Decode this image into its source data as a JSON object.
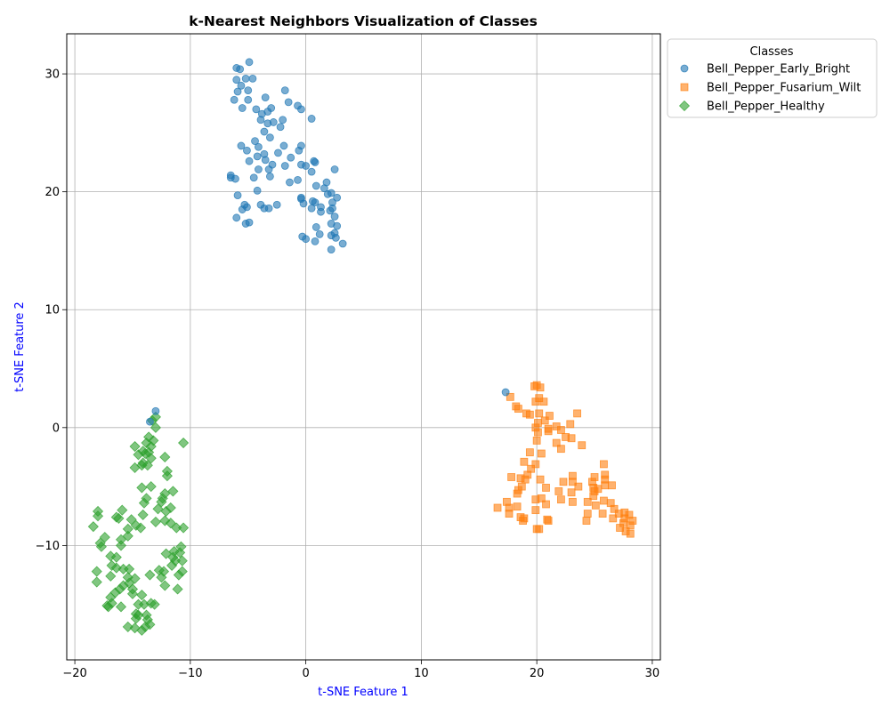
{
  "chart_data": {
    "type": "scatter",
    "title": "k-Nearest Neighbors Visualization of Classes",
    "xlabel": "t-SNE Feature 1",
    "ylabel": "t-SNE Feature 2",
    "xlim": [
      -20.7,
      30.7
    ],
    "ylim": [
      -19.7,
      33.4
    ],
    "xticks": [
      -20,
      -10,
      0,
      10,
      20,
      30
    ],
    "yticks": [
      -10,
      0,
      10,
      20,
      30
    ],
    "grid": true,
    "legend": {
      "title": "Classes",
      "placement": "outside-top-right"
    },
    "series": [
      {
        "name": "Bell_Pepper_Early_Bright",
        "marker": "circle",
        "color": "#1f77b4",
        "points": [
          [
            -6,
            30.5
          ],
          [
            -5.7,
            30.4
          ],
          [
            -4.9,
            31
          ],
          [
            -5.2,
            29.6
          ],
          [
            -6,
            29.5
          ],
          [
            -5.6,
            29
          ],
          [
            -4.6,
            29.6
          ],
          [
            -5.9,
            28.5
          ],
          [
            -5,
            28.6
          ],
          [
            -6.2,
            27.8
          ],
          [
            -5,
            27.8
          ],
          [
            -5.5,
            27.1
          ],
          [
            -4.3,
            27
          ],
          [
            -3.5,
            28
          ],
          [
            -1.8,
            28.6
          ],
          [
            -1.5,
            27.6
          ],
          [
            -0.7,
            27.3
          ],
          [
            -3,
            27.1
          ],
          [
            -3.8,
            26.6
          ],
          [
            -3.3,
            26.8
          ],
          [
            -0.4,
            27
          ],
          [
            0.5,
            26.2
          ],
          [
            -2,
            26.1
          ],
          [
            -2.8,
            25.9
          ],
          [
            -3.3,
            25.8
          ],
          [
            -3.9,
            26.1
          ],
          [
            -2.2,
            25.5
          ],
          [
            -3.6,
            25.1
          ],
          [
            -3.1,
            24.6
          ],
          [
            -4.4,
            24.3
          ],
          [
            -4.1,
            23.8
          ],
          [
            -5.6,
            23.9
          ],
          [
            -5.1,
            23.5
          ],
          [
            -1.9,
            23.9
          ],
          [
            -0.6,
            23.5
          ],
          [
            -0.4,
            23.9
          ],
          [
            -1.3,
            22.9
          ],
          [
            -2.4,
            23.3
          ],
          [
            -3.6,
            23.2
          ],
          [
            -4.2,
            23
          ],
          [
            -3.5,
            22.7
          ],
          [
            -2.9,
            22.3
          ],
          [
            -4.9,
            22.6
          ],
          [
            -4.1,
            21.9
          ],
          [
            -3.2,
            21.9
          ],
          [
            -1.8,
            22.2
          ],
          [
            -0.4,
            22.3
          ],
          [
            0,
            22.2
          ],
          [
            0.7,
            22.6
          ],
          [
            0.8,
            22.5
          ],
          [
            2.5,
            21.9
          ],
          [
            -3.1,
            21.3
          ],
          [
            -4.5,
            21.2
          ],
          [
            -6.5,
            21.4
          ],
          [
            -6.1,
            21.1
          ],
          [
            -6.5,
            21.2
          ],
          [
            -1.4,
            20.8
          ],
          [
            -0.7,
            21
          ],
          [
            0.5,
            21.7
          ],
          [
            0.9,
            20.5
          ],
          [
            1.6,
            20.3
          ],
          [
            1.8,
            20.8
          ],
          [
            1.9,
            19.8
          ],
          [
            2.2,
            19.9
          ],
          [
            2.7,
            19.5
          ],
          [
            -0.4,
            19.4
          ],
          [
            -0.4,
            19.5
          ],
          [
            0.6,
            19.2
          ],
          [
            -0.2,
            19
          ],
          [
            0.8,
            19.1
          ],
          [
            2.3,
            19.1
          ],
          [
            1.3,
            18.7
          ],
          [
            1.3,
            18.3
          ],
          [
            0.5,
            18.6
          ],
          [
            2.1,
            18.4
          ],
          [
            2.3,
            18.6
          ],
          [
            2.5,
            17.9
          ],
          [
            2.2,
            17.3
          ],
          [
            2.7,
            17.1
          ],
          [
            -4.2,
            20.1
          ],
          [
            -5.9,
            19.7
          ],
          [
            -2.5,
            18.9
          ],
          [
            -3.9,
            18.9
          ],
          [
            -3.6,
            18.6
          ],
          [
            -3.2,
            18.6
          ],
          [
            -5.3,
            18.9
          ],
          [
            -5.1,
            18.7
          ],
          [
            -5.5,
            18.5
          ],
          [
            -6,
            17.8
          ],
          [
            -5.2,
            17.3
          ],
          [
            -4.9,
            17.4
          ],
          [
            0.9,
            17
          ],
          [
            1.2,
            16.4
          ],
          [
            -0.3,
            16.2
          ],
          [
            0,
            16
          ],
          [
            0.8,
            15.8
          ],
          [
            2.2,
            16.3
          ],
          [
            2.5,
            16.5
          ],
          [
            2.6,
            16.1
          ],
          [
            2.2,
            15.1
          ],
          [
            3.2,
            15.6
          ]
        ]
      },
      {
        "name": "Bell_Pepper_Fusarium_Wilt",
        "marker": "square",
        "color": "#ff7f0e",
        "points": [
          [
            20,
            3.6
          ],
          [
            19.8,
            3.5
          ],
          [
            20.3,
            3.4
          ],
          [
            17.7,
            2.6
          ],
          [
            20.2,
            2.5
          ],
          [
            20.6,
            2.2
          ],
          [
            19.9,
            2.2
          ],
          [
            18.2,
            1.8
          ],
          [
            18.4,
            1.6
          ],
          [
            19.1,
            1.2
          ],
          [
            19.4,
            1.1
          ],
          [
            20.2,
            1.2
          ],
          [
            21.1,
            1
          ],
          [
            20.7,
            0.6
          ],
          [
            23.5,
            1.2
          ],
          [
            20.1,
            0.4
          ],
          [
            19.9,
            0
          ],
          [
            21,
            -0.1
          ],
          [
            21.7,
            0.1
          ],
          [
            22.9,
            0.3
          ],
          [
            20.1,
            -0.4
          ],
          [
            21,
            -0.3
          ],
          [
            22.1,
            -0.2
          ],
          [
            22.5,
            -0.8
          ],
          [
            20,
            -1.1
          ],
          [
            21.7,
            -1.3
          ],
          [
            23,
            -0.9
          ],
          [
            22.1,
            -1.8
          ],
          [
            23.9,
            -1.5
          ],
          [
            19.4,
            -2.1
          ],
          [
            20.4,
            -2.2
          ],
          [
            18.9,
            -2.9
          ],
          [
            19.9,
            -3.1
          ],
          [
            19.5,
            -3.5
          ],
          [
            25.8,
            -3.1
          ],
          [
            19.2,
            -4
          ],
          [
            18.6,
            -4.3
          ],
          [
            17.8,
            -4.2
          ],
          [
            19,
            -4.4
          ],
          [
            20.3,
            -4.4
          ],
          [
            23.1,
            -4.1
          ],
          [
            23.1,
            -4.6
          ],
          [
            25,
            -4.2
          ],
          [
            25.9,
            -4
          ],
          [
            22.3,
            -4.6
          ],
          [
            24.8,
            -4.6
          ],
          [
            25.9,
            -4.4
          ],
          [
            25.9,
            -4.9
          ],
          [
            26.5,
            -4.9
          ],
          [
            18.7,
            -5
          ],
          [
            20.8,
            -5.1
          ],
          [
            23.6,
            -5
          ],
          [
            24.9,
            -5.1
          ],
          [
            25.3,
            -5.2
          ],
          [
            18.4,
            -5.3
          ],
          [
            18.3,
            -5.6
          ],
          [
            21.9,
            -5.4
          ],
          [
            23,
            -5.5
          ],
          [
            25,
            -5.4
          ],
          [
            24.9,
            -5.8
          ],
          [
            20.4,
            -6
          ],
          [
            19.9,
            -6.1
          ],
          [
            22.1,
            -6.1
          ],
          [
            25.8,
            -6.2
          ],
          [
            23.1,
            -6.3
          ],
          [
            24.4,
            -6.3
          ],
          [
            17.4,
            -6.3
          ],
          [
            20.8,
            -6.5
          ],
          [
            18.3,
            -6.7
          ],
          [
            16.6,
            -6.8
          ],
          [
            17.6,
            -6.8
          ],
          [
            26.4,
            -6.4
          ],
          [
            25.1,
            -6.6
          ],
          [
            26.7,
            -6.9
          ],
          [
            19.9,
            -7
          ],
          [
            17.6,
            -7.3
          ],
          [
            24.4,
            -7.3
          ],
          [
            25.7,
            -7.3
          ],
          [
            27.1,
            -7.3
          ],
          [
            27.6,
            -7.2
          ],
          [
            28,
            -7.4
          ],
          [
            18.6,
            -7.6
          ],
          [
            18.8,
            -7.9
          ],
          [
            18.9,
            -7.7
          ],
          [
            20.9,
            -7.8
          ],
          [
            21,
            -7.9
          ],
          [
            24.3,
            -7.9
          ],
          [
            26.6,
            -7.7
          ],
          [
            27.6,
            -7.7
          ],
          [
            28.3,
            -7.9
          ],
          [
            27.5,
            -8.1
          ],
          [
            28.1,
            -8.3
          ],
          [
            27.2,
            -8.5
          ],
          [
            20,
            -8.6
          ],
          [
            20.2,
            -8.6
          ],
          [
            27.7,
            -8.8
          ],
          [
            28.1,
            -9
          ]
        ]
      },
      {
        "name": "Bell_Pepper_Healthy",
        "marker": "diamond",
        "color": "#2ca02c",
        "points": [
          [
            -13,
            0.9
          ],
          [
            -13.3,
            0.6
          ],
          [
            -13,
            0
          ],
          [
            -13.6,
            -0.8
          ],
          [
            -13.2,
            -1.1
          ],
          [
            -13.8,
            -1.3
          ],
          [
            -10.6,
            -1.3
          ],
          [
            -13.4,
            -1.6
          ],
          [
            -14.8,
            -1.6
          ],
          [
            -14.1,
            -2
          ],
          [
            -13.6,
            -2.1
          ],
          [
            -14.5,
            -2.3
          ],
          [
            -13.9,
            -2.2
          ],
          [
            -12.2,
            -2.5
          ],
          [
            -13.4,
            -2.6
          ],
          [
            -14.1,
            -3
          ],
          [
            -13.7,
            -3.2
          ],
          [
            -14.8,
            -3.4
          ],
          [
            -12,
            -3.7
          ],
          [
            -14.2,
            -3.2
          ],
          [
            -12,
            -4.1
          ],
          [
            -13.4,
            -5
          ],
          [
            -14.2,
            -5.1
          ],
          [
            -11.5,
            -5.4
          ],
          [
            -12.2,
            -5.6
          ],
          [
            -12.4,
            -6
          ],
          [
            -12.5,
            -6.3
          ],
          [
            -13.8,
            -6
          ],
          [
            -14,
            -6.4
          ],
          [
            -11.7,
            -6.8
          ],
          [
            -12.8,
            -6.9
          ],
          [
            -12.1,
            -7.1
          ],
          [
            -15.9,
            -7
          ],
          [
            -16.4,
            -7.6
          ],
          [
            -14.1,
            -7.4
          ],
          [
            -15.1,
            -7.8
          ],
          [
            -16.2,
            -7.7
          ],
          [
            -12.2,
            -7.9
          ],
          [
            -11.7,
            -8.1
          ],
          [
            -13,
            -8
          ],
          [
            -14.7,
            -8.3
          ],
          [
            -14.3,
            -8.5
          ],
          [
            -11.2,
            -8.5
          ],
          [
            -10.6,
            -8.5
          ],
          [
            -15.4,
            -8.6
          ],
          [
            -18,
            -7.1
          ],
          [
            -18,
            -7.5
          ],
          [
            -18.4,
            -8.4
          ],
          [
            -17.4,
            -9.3
          ],
          [
            -15.4,
            -9.2
          ],
          [
            -16,
            -9.5
          ],
          [
            -17.8,
            -9.8
          ],
          [
            -16,
            -10
          ],
          [
            -17.7,
            -10.1
          ],
          [
            -10.8,
            -10.1
          ],
          [
            -11.4,
            -10.5
          ],
          [
            -12.1,
            -10.7
          ],
          [
            -10.9,
            -10.6
          ],
          [
            -16.9,
            -10.9
          ],
          [
            -16.4,
            -11
          ],
          [
            -11.5,
            -11
          ],
          [
            -11.3,
            -11.3
          ],
          [
            -10.7,
            -11.3
          ],
          [
            -11.6,
            -11.7
          ],
          [
            -16.8,
            -11.7
          ],
          [
            -16.4,
            -11.9
          ],
          [
            -15.8,
            -12
          ],
          [
            -15.3,
            -12
          ],
          [
            -12.7,
            -12.1
          ],
          [
            -12.3,
            -12.2
          ],
          [
            -10.7,
            -12.2
          ],
          [
            -18.1,
            -12.2
          ],
          [
            -11,
            -12.5
          ],
          [
            -13.5,
            -12.5
          ],
          [
            -15.4,
            -12.7
          ],
          [
            -14.8,
            -12.8
          ],
          [
            -16.9,
            -12.6
          ],
          [
            -12.5,
            -12.7
          ],
          [
            -18.1,
            -13.1
          ],
          [
            -15.3,
            -13.2
          ],
          [
            -12.2,
            -13.4
          ],
          [
            -15.8,
            -13.4
          ],
          [
            -16.1,
            -13.7
          ],
          [
            -15,
            -13.7
          ],
          [
            -11.1,
            -13.7
          ],
          [
            -15,
            -14.1
          ],
          [
            -16.5,
            -14
          ],
          [
            -14.2,
            -14.2
          ],
          [
            -16.9,
            -14.4
          ],
          [
            -13.4,
            -14.9
          ],
          [
            -13.1,
            -15
          ],
          [
            -14,
            -15
          ],
          [
            -14.5,
            -15
          ],
          [
            -16.8,
            -14.9
          ],
          [
            -16,
            -15.2
          ],
          [
            -17.2,
            -15.1
          ],
          [
            -17.1,
            -15.2
          ],
          [
            -14.7,
            -15.8
          ],
          [
            -14.5,
            -15.9
          ],
          [
            -13.8,
            -15.9
          ],
          [
            -14.7,
            -16.2
          ],
          [
            -13.7,
            -16.3
          ],
          [
            -13.5,
            -16.7
          ],
          [
            -13.9,
            -16.9
          ],
          [
            -15.4,
            -16.9
          ],
          [
            -14.8,
            -17
          ],
          [
            -14.2,
            -17.2
          ]
        ]
      },
      {
        "name": "",
        "marker": "circle",
        "color": "#1f77b4",
        "points": [
          [
            17.3,
            3
          ],
          [
            -13,
            1.4
          ],
          [
            -13.5,
            0.5
          ]
        ]
      }
    ]
  }
}
